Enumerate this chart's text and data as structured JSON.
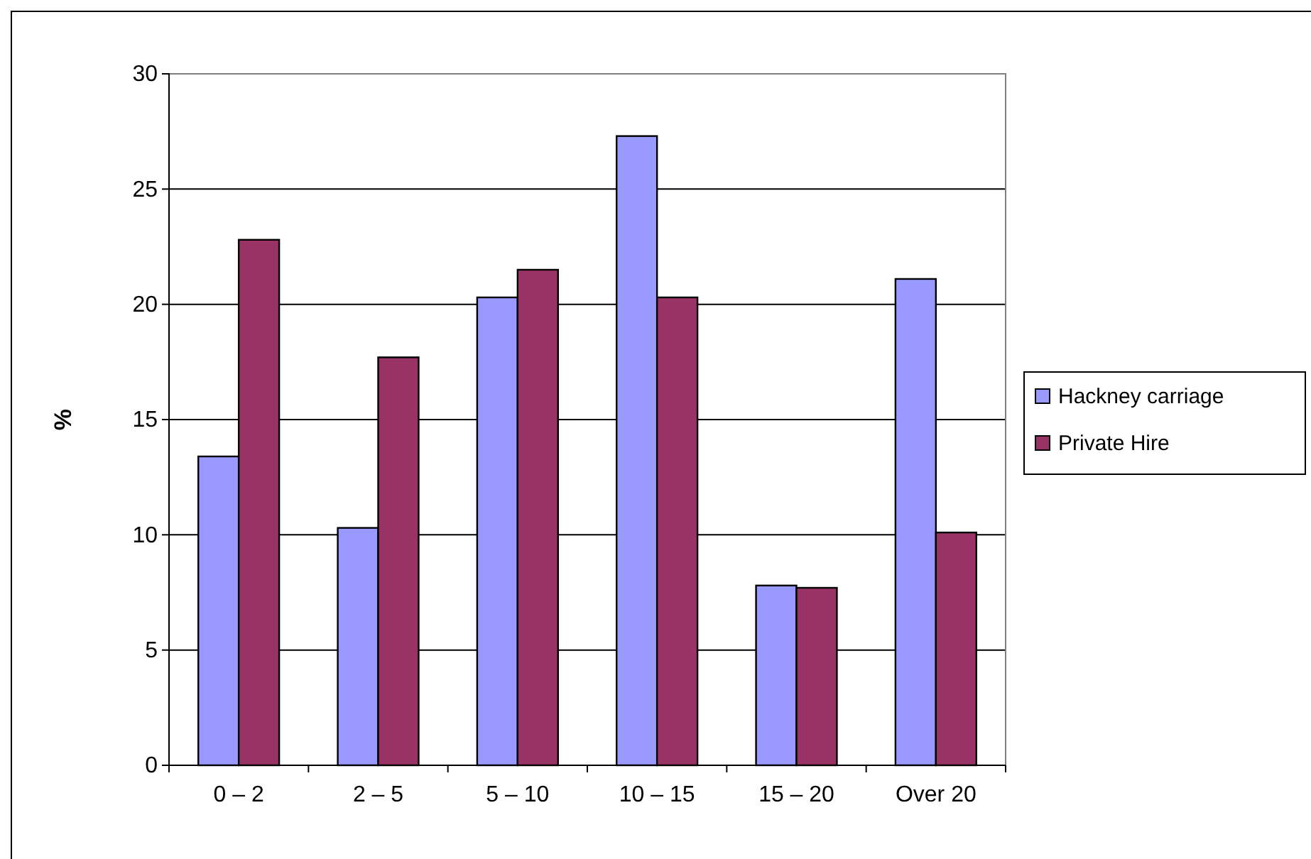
{
  "chart_data": {
    "type": "bar",
    "ylabel": "%",
    "categories": [
      "0 – 2",
      "2 – 5",
      "5 – 10",
      "10 – 15",
      "15 – 20",
      "Over 20"
    ],
    "series": [
      {
        "name": "Hackney carriage",
        "color": "#9999ff",
        "values": [
          13.4,
          10.3,
          20.3,
          27.3,
          7.8,
          21.1
        ]
      },
      {
        "name": "Private Hire",
        "color": "#993366",
        "values": [
          22.8,
          17.7,
          21.5,
          20.3,
          7.7,
          10.1
        ]
      }
    ],
    "ylim": [
      0,
      30
    ],
    "yticks": [
      0,
      5,
      10,
      15,
      20,
      25,
      30
    ],
    "grid": "y",
    "legend": "right"
  }
}
